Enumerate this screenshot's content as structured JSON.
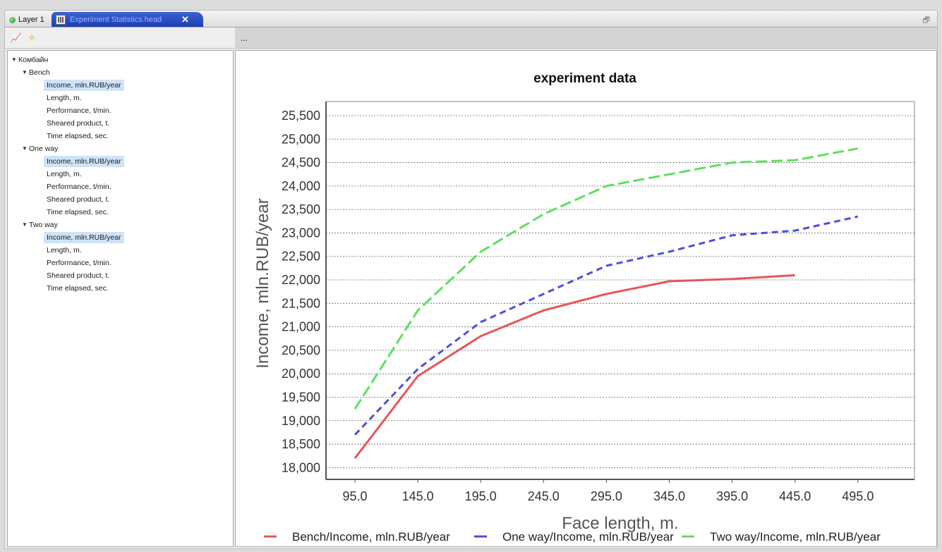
{
  "tabs": [
    {
      "label": "Layer 1"
    },
    {
      "label": "Experiment Statistics.head"
    }
  ],
  "toolbar": {
    "ellipsis": "..."
  },
  "tree": {
    "root": "Комбайн",
    "groups": [
      {
        "label": "Bench",
        "items": [
          "Income, mln.RUB/year",
          "Length, m.",
          "Performance, t/min.",
          "Sheared product, t.",
          "Time elapsed, sec."
        ]
      },
      {
        "label": "One way",
        "items": [
          "Income, mln.RUB/year",
          "Length, m.",
          "Performance, t/min.",
          "Sheared product, t.",
          "Time elapsed, sec."
        ]
      },
      {
        "label": "Two way",
        "items": [
          "Income, mln.RUB/year",
          "Length, m.",
          "Performance, t/min.",
          "Sheared product, t.",
          "Time elapsed, sec."
        ]
      }
    ]
  },
  "chart_data": {
    "type": "line",
    "title": "experiment data",
    "xlabel": "Face length, m.",
    "ylabel": "Income, mln.RUB/year",
    "x_ticks": [
      "95.0",
      "145.0",
      "195.0",
      "245.0",
      "295.0",
      "345.0",
      "395.0",
      "445.0",
      "495.0"
    ],
    "y_ticks": [
      "18,000",
      "18,500",
      "19,000",
      "19,500",
      "20,000",
      "20,500",
      "21,000",
      "21,500",
      "22,000",
      "22,500",
      "23,000",
      "23,500",
      "24,000",
      "24,500",
      "25,000",
      "25,500"
    ],
    "xlim": [
      72,
      540
    ],
    "ylim": [
      17750,
      25800
    ],
    "grid": true,
    "legend_position": "bottom",
    "series": [
      {
        "name": "Bench/Income, mln.RUB/year",
        "color": "#e8545a",
        "dash": "solid",
        "x": [
          95,
          145,
          195,
          245,
          295,
          345,
          395,
          445
        ],
        "y": [
          18200,
          19950,
          20800,
          21350,
          21700,
          21970,
          22020,
          22100
        ]
      },
      {
        "name": "One way/Income, mln.RUB/year",
        "color": "#4e4ee0",
        "dash": "short",
        "x": [
          95,
          145,
          195,
          245,
          295,
          345,
          395,
          445,
          495
        ],
        "y": [
          18700,
          20100,
          21100,
          21700,
          22300,
          22600,
          22950,
          23050,
          23350
        ]
      },
      {
        "name": "Two way/Income, mln.RUB/year",
        "color": "#5ee05e",
        "dash": "long",
        "x": [
          95,
          145,
          195,
          245,
          295,
          345,
          395,
          445,
          495
        ],
        "y": [
          19250,
          21350,
          22600,
          23400,
          24000,
          24250,
          24500,
          24550,
          24800
        ]
      }
    ]
  }
}
